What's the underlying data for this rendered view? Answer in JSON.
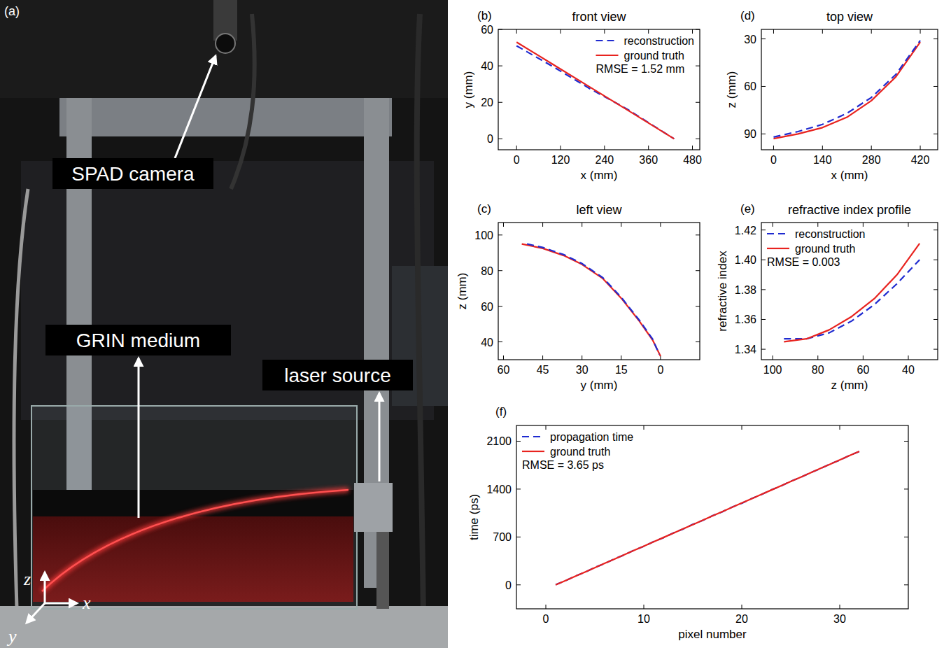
{
  "photo": {
    "label": "(a)",
    "annotations": [
      "SPAD camera",
      "GRIN medium",
      "laser source"
    ],
    "axes": [
      "z",
      "x",
      "y"
    ]
  },
  "chart_data": [
    {
      "type": "line",
      "label": "(b)",
      "title": "front view",
      "x_label": "x (mm)",
      "y_label": "y (mm)",
      "xlim": [
        -50,
        500
      ],
      "xticks": [
        0,
        120,
        240,
        360,
        480
      ],
      "ylim": [
        -6,
        60
      ],
      "yticks": [
        0,
        20,
        40,
        60
      ],
      "grid": false,
      "legend": "upper right",
      "annotation": "RMSE = 1.52 mm",
      "series": [
        {
          "name": "reconstruction",
          "color": "#1f2bd0",
          "line_style": "dashed",
          "x": [
            0,
            100,
            200,
            300,
            430
          ],
          "values": [
            51,
            39.5,
            27.5,
            16.5,
            0
          ]
        },
        {
          "name": "ground truth",
          "color": "#e8231f",
          "line_style": "solid",
          "x": [
            0,
            100,
            200,
            300,
            430
          ],
          "values": [
            53,
            40.7,
            28.4,
            16.1,
            0
          ]
        }
      ]
    },
    {
      "type": "line",
      "label": "(c)",
      "title": "left view",
      "x_label": "y (mm)",
      "y_label": "z (mm)",
      "xlim": [
        62,
        -15
      ],
      "xticks": [
        60,
        45,
        30,
        15,
        0
      ],
      "ylim": [
        30,
        107
      ],
      "yticks": [
        40,
        60,
        80,
        100
      ],
      "grid": false,
      "series": [
        {
          "color": "#e8231f",
          "line_style": "solid",
          "x": [
            53,
            45,
            37,
            30,
            22,
            15,
            8,
            3,
            0
          ],
          "values": [
            95,
            92.5,
            88.5,
            83.5,
            75.5,
            64.5,
            51.5,
            41,
            32
          ]
        },
        {
          "color": "#1f2bd0",
          "line_style": "dashed",
          "x": [
            51,
            45,
            37,
            30,
            22,
            15,
            8,
            3,
            0.5
          ],
          "values": [
            95,
            93,
            89,
            84,
            76,
            65,
            52,
            41.5,
            33
          ]
        }
      ]
    },
    {
      "type": "line",
      "label": "(d)",
      "title": "top view",
      "x_label": "x (mm)",
      "y_label": "z (mm)",
      "xlim": [
        -35,
        470
      ],
      "xticks": [
        0,
        140,
        280,
        420
      ],
      "ylim": [
        100,
        24
      ],
      "yticks": [
        30,
        60,
        90
      ],
      "grid": false,
      "series": [
        {
          "color": "#e8231f",
          "line_style": "solid",
          "x": [
            0,
            70,
            140,
            210,
            280,
            350,
            420
          ],
          "values": [
            93,
            90,
            86,
            79.5,
            69,
            54,
            32
          ]
        },
        {
          "color": "#1f2bd0",
          "line_style": "dashed",
          "x": [
            0,
            70,
            140,
            210,
            280,
            350,
            420
          ],
          "values": [
            92,
            88.5,
            84,
            77,
            67,
            52.5,
            31
          ]
        }
      ]
    },
    {
      "type": "line",
      "label": "(e)",
      "title": "refractive index profile",
      "x_label": "z (mm)",
      "y_label": "refractive index",
      "xlim": [
        105,
        27
      ],
      "xticks": [
        100,
        80,
        60,
        40
      ],
      "ylim": [
        1.333,
        1.425
      ],
      "yticks": [
        1.34,
        1.36,
        1.38,
        {
          "value": 1.4,
          "label": "1.40"
        },
        1.42
      ],
      "grid": false,
      "legend": "upper left",
      "annotation": "RMSE = 0.003",
      "series": [
        {
          "name": "reconstruction",
          "color": "#1f2bd0",
          "line_style": "dashed",
          "x": [
            95,
            85,
            75,
            65,
            55,
            45,
            35
          ],
          "values": [
            1.347,
            1.347,
            1.351,
            1.359,
            1.37,
            1.384,
            1.4
          ]
        },
        {
          "name": "ground truth",
          "color": "#e8231f",
          "line_style": "solid",
          "x": [
            95,
            85,
            75,
            65,
            55,
            45,
            35
          ],
          "values": [
            1.345,
            1.347,
            1.353,
            1.362,
            1.374,
            1.39,
            1.411
          ]
        }
      ]
    },
    {
      "type": "line",
      "label": "(f)",
      "x_label": "pixel number",
      "y_label": "time (ps)",
      "xlim": [
        -3,
        37
      ],
      "xticks": [
        0,
        10,
        20,
        30
      ],
      "ylim": [
        -350,
        2330
      ],
      "yticks": [
        0,
        700,
        1400,
        2100
      ],
      "grid": false,
      "legend": "upper left",
      "annotation": "RMSE = 3.65 ps",
      "series": [
        {
          "name": "propagation time",
          "color": "#1f2bd0",
          "line_style": "dashed",
          "x": [
            1,
            2,
            3,
            4,
            5,
            6,
            7,
            8,
            9,
            10,
            11,
            12,
            13,
            14,
            15,
            16,
            17,
            18,
            19,
            20,
            21,
            22,
            23,
            24,
            25,
            26,
            27,
            28,
            29,
            30,
            31,
            32
          ],
          "values": [
            2,
            60,
            128,
            185,
            255,
            311,
            380,
            437,
            506,
            563,
            632,
            689,
            758,
            815,
            884,
            941,
            1010,
            1067,
            1136,
            1193,
            1262,
            1319,
            1388,
            1445,
            1514,
            1571,
            1640,
            1697,
            1766,
            1823,
            1892,
            1949
          ]
        },
        {
          "name": "ground truth",
          "color": "#e8231f",
          "line_style": "solid",
          "x": [
            1,
            2,
            3,
            4,
            5,
            6,
            7,
            8,
            9,
            10,
            11,
            12,
            13,
            14,
            15,
            16,
            17,
            18,
            19,
            20,
            21,
            22,
            23,
            24,
            25,
            26,
            27,
            28,
            29,
            30,
            31,
            32
          ],
          "values": [
            0,
            62,
            125,
            188,
            251,
            314,
            377,
            440,
            503,
            566,
            629,
            692,
            755,
            818,
            881,
            944,
            1007,
            1070,
            1133,
            1196,
            1259,
            1322,
            1385,
            1448,
            1511,
            1574,
            1637,
            1700,
            1763,
            1826,
            1889,
            1952
          ]
        }
      ]
    }
  ]
}
